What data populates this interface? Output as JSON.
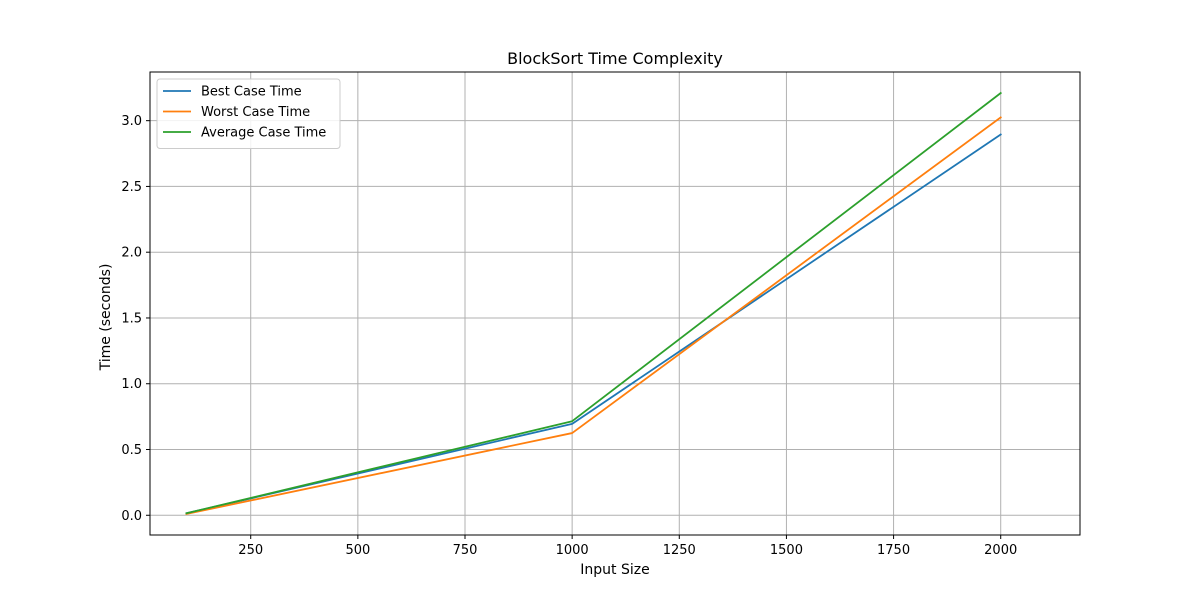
{
  "chart_data": {
    "type": "line",
    "title": "BlockSort Time Complexity",
    "xlabel": "Input Size",
    "ylabel": "Time (seconds)",
    "x": [
      100,
      1000,
      2000
    ],
    "xlim": [
      15,
      2185
    ],
    "ylim": [
      -0.15,
      3.37
    ],
    "xticks": [
      250,
      500,
      750,
      1000,
      1250,
      1500,
      1750,
      2000
    ],
    "xtick_labels": [
      "250",
      "500",
      "750",
      "1000",
      "1250",
      "1500",
      "1750",
      "2000"
    ],
    "yticks": [
      0.0,
      0.5,
      1.0,
      1.5,
      2.0,
      2.5,
      3.0
    ],
    "ytick_labels": [
      "0.0",
      "0.5",
      "1.0",
      "1.5",
      "2.0",
      "2.5",
      "3.0"
    ],
    "grid": true,
    "legend_position": "top-left",
    "series": [
      {
        "name": "Best Case Time",
        "color": "#1f77b4",
        "values": [
          0.015,
          0.695,
          2.895
        ]
      },
      {
        "name": "Worst Case Time",
        "color": "#ff7f0e",
        "values": [
          0.01,
          0.625,
          3.025
        ]
      },
      {
        "name": "Average Case Time",
        "color": "#2ca02c",
        "values": [
          0.015,
          0.715,
          3.21
        ]
      }
    ]
  }
}
